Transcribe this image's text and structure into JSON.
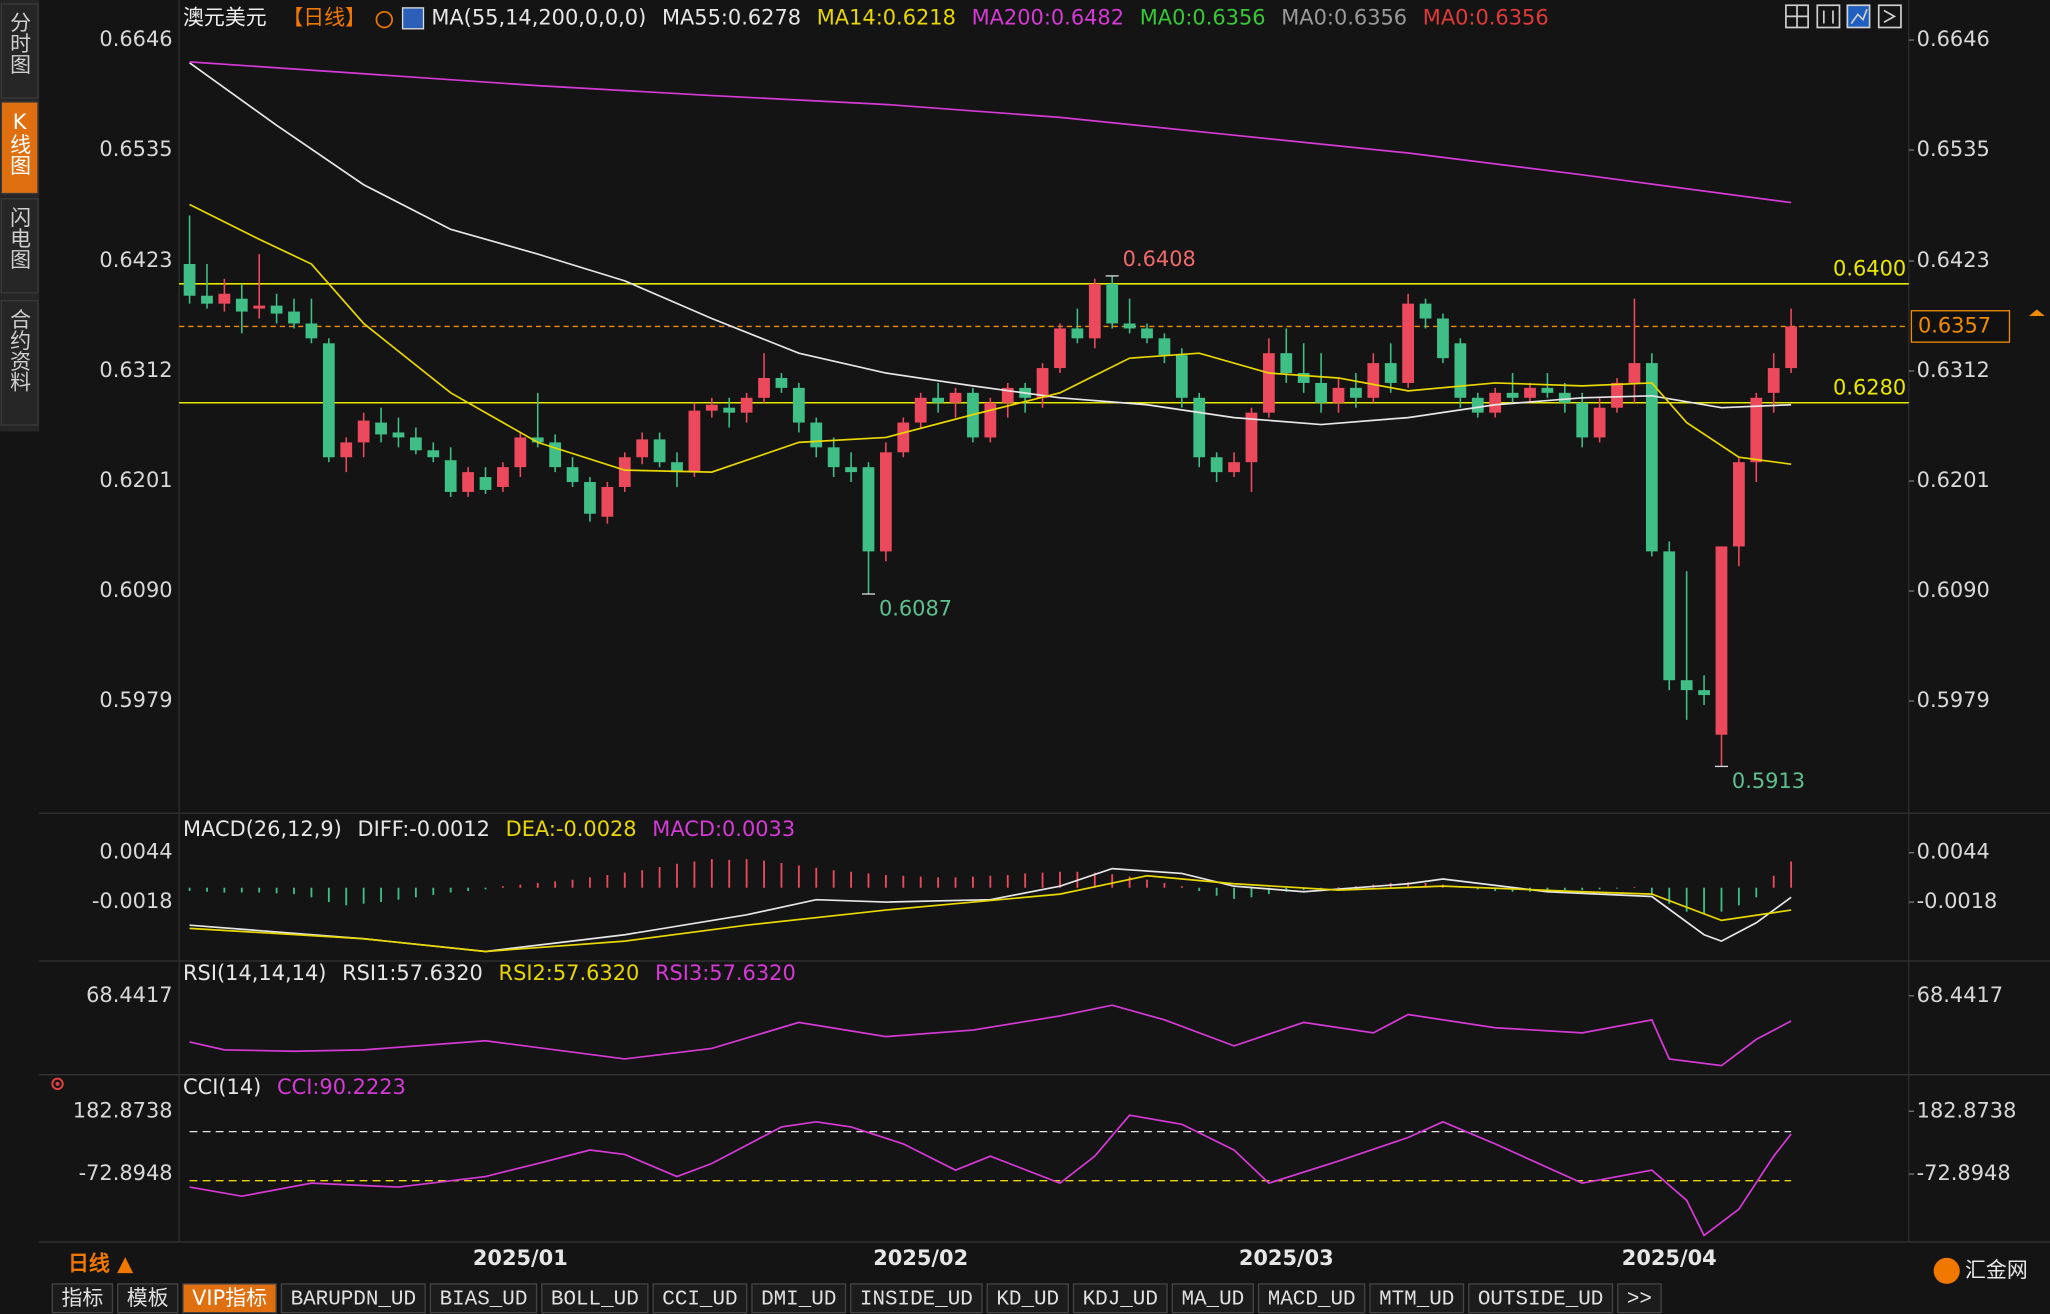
{
  "sidebar": {
    "tabs": [
      "分时图",
      "K线图",
      "闪电图",
      "合约资料"
    ],
    "active": 1
  },
  "chart_data": [
    {
      "type": "candlestick",
      "title": "澳元美元",
      "period": "【日线】",
      "indicator": "MA(55,14,200,0,0,0)",
      "open": [
        0.642,
        0.6388,
        0.638,
        0.6385,
        0.6375,
        0.6378,
        0.6372,
        0.636,
        0.634,
        0.6225,
        0.624,
        0.626,
        0.625,
        0.6245,
        0.6232,
        0.6222,
        0.619,
        0.6205,
        0.6195,
        0.6215,
        0.6245,
        0.624,
        0.6215,
        0.62,
        0.6165,
        0.6195,
        0.6225,
        0.6243,
        0.622,
        0.621,
        0.6272,
        0.6275,
        0.627,
        0.6285,
        0.6305,
        0.6295,
        0.626,
        0.6235,
        0.6215,
        0.6215,
        0.613,
        0.623,
        0.626,
        0.6285,
        0.628,
        0.629,
        0.6245,
        0.628,
        0.6295,
        0.6285,
        0.6315,
        0.6355,
        0.6345,
        0.64,
        0.636,
        0.6355,
        0.6345,
        0.6328,
        0.6285,
        0.6225,
        0.621,
        0.622,
        0.627,
        0.633,
        0.631,
        0.63,
        0.628,
        0.6295,
        0.6285,
        0.632,
        0.63,
        0.638,
        0.6365,
        0.634,
        0.6285,
        0.627,
        0.629,
        0.6285,
        0.6295,
        0.629,
        0.628,
        0.6245,
        0.6275,
        0.63,
        0.632,
        0.613,
        0.6,
        0.599,
        0.5945,
        0.6135,
        0.622,
        0.629,
        0.6315
      ],
      "high": [
        0.6469,
        0.642,
        0.6405,
        0.64,
        0.643,
        0.639,
        0.6385,
        0.6385,
        0.6345,
        0.6245,
        0.627,
        0.6275,
        0.6265,
        0.6255,
        0.624,
        0.6235,
        0.6215,
        0.6215,
        0.622,
        0.625,
        0.629,
        0.6248,
        0.6225,
        0.6205,
        0.62,
        0.623,
        0.625,
        0.625,
        0.623,
        0.628,
        0.6285,
        0.6285,
        0.629,
        0.633,
        0.631,
        0.63,
        0.6265,
        0.6245,
        0.623,
        0.622,
        0.624,
        0.6265,
        0.629,
        0.63,
        0.6295,
        0.6295,
        0.6285,
        0.63,
        0.63,
        0.632,
        0.636,
        0.6375,
        0.6405,
        0.6408,
        0.6385,
        0.636,
        0.635,
        0.6335,
        0.629,
        0.623,
        0.623,
        0.6275,
        0.6345,
        0.6355,
        0.634,
        0.633,
        0.6305,
        0.631,
        0.633,
        0.634,
        0.639,
        0.6385,
        0.637,
        0.6345,
        0.629,
        0.6295,
        0.631,
        0.63,
        0.631,
        0.63,
        0.629,
        0.6285,
        0.6305,
        0.6385,
        0.633,
        0.614,
        0.611,
        0.6005,
        0.6135,
        0.6225,
        0.629,
        0.633,
        0.6375
      ],
      "low": [
        0.638,
        0.6375,
        0.6372,
        0.635,
        0.6365,
        0.636,
        0.6355,
        0.634,
        0.622,
        0.621,
        0.6225,
        0.624,
        0.6235,
        0.6228,
        0.622,
        0.6185,
        0.6185,
        0.6188,
        0.619,
        0.6205,
        0.6235,
        0.621,
        0.6195,
        0.616,
        0.6158,
        0.619,
        0.6218,
        0.6215,
        0.6195,
        0.6205,
        0.6265,
        0.6255,
        0.626,
        0.628,
        0.629,
        0.625,
        0.6225,
        0.6205,
        0.62,
        0.6087,
        0.612,
        0.6225,
        0.6255,
        0.627,
        0.6265,
        0.624,
        0.624,
        0.6265,
        0.627,
        0.6275,
        0.631,
        0.634,
        0.6335,
        0.6355,
        0.635,
        0.634,
        0.632,
        0.6275,
        0.6215,
        0.62,
        0.6205,
        0.619,
        0.6265,
        0.63,
        0.629,
        0.627,
        0.627,
        0.6275,
        0.628,
        0.629,
        0.6295,
        0.6355,
        0.632,
        0.6275,
        0.6265,
        0.6265,
        0.628,
        0.628,
        0.6285,
        0.627,
        0.6235,
        0.624,
        0.627,
        0.628,
        0.6125,
        0.599,
        0.596,
        0.5975,
        0.5913,
        0.6115,
        0.62,
        0.627,
        0.631
      ],
      "close": [
        0.6388,
        0.638,
        0.639,
        0.6372,
        0.6378,
        0.637,
        0.636,
        0.6345,
        0.6225,
        0.624,
        0.6262,
        0.6248,
        0.6245,
        0.6232,
        0.6225,
        0.619,
        0.621,
        0.6192,
        0.6215,
        0.6245,
        0.624,
        0.6215,
        0.62,
        0.6168,
        0.6195,
        0.6225,
        0.6243,
        0.622,
        0.621,
        0.6272,
        0.6278,
        0.627,
        0.6285,
        0.6305,
        0.6295,
        0.626,
        0.6235,
        0.6215,
        0.621,
        0.613,
        0.623,
        0.626,
        0.6285,
        0.628,
        0.629,
        0.6245,
        0.628,
        0.6295,
        0.6285,
        0.6315,
        0.6355,
        0.6345,
        0.64,
        0.636,
        0.6355,
        0.6345,
        0.6328,
        0.6285,
        0.6225,
        0.621,
        0.622,
        0.627,
        0.633,
        0.631,
        0.63,
        0.628,
        0.6295,
        0.6285,
        0.632,
        0.63,
        0.638,
        0.6365,
        0.6325,
        0.6285,
        0.627,
        0.629,
        0.6285,
        0.6295,
        0.629,
        0.628,
        0.6245,
        0.6275,
        0.63,
        0.632,
        0.613,
        0.6,
        0.599,
        0.5985,
        0.6135,
        0.622,
        0.6285,
        0.6315,
        0.6357
      ],
      "up_color": "#ec4a5c",
      "down_color": "#3fbf86",
      "ylim": [
        0.5875,
        0.666
      ],
      "yticks": [
        0.6646,
        0.6535,
        0.6423,
        0.6312,
        0.6201,
        {
          "value": 0.609,
          "label": "0.6090"
        },
        0.5979
      ],
      "x_labels": [
        {
          "index": 19,
          "label": "2025/01"
        },
        {
          "index": 42,
          "label": "2025/02"
        },
        {
          "index": 63,
          "label": "2025/03"
        },
        {
          "index": 85,
          "label": "2025/04"
        }
      ],
      "series": [
        {
          "name": "MA55:0.6278",
          "color": "#e6e6e6",
          "x": [
            0,
            5,
            10,
            15,
            20,
            25,
            30,
            35,
            40,
            45,
            50,
            55,
            60,
            65,
            70,
            75,
            80,
            84,
            88,
            92
          ],
          "values": [
            0.6623,
            0.656,
            0.65,
            0.6455,
            0.643,
            0.6403,
            0.6365,
            0.633,
            0.631,
            0.6297,
            0.6285,
            0.6278,
            0.6265,
            0.6258,
            0.6265,
            0.6278,
            0.6285,
            0.6287,
            0.6275,
            0.6278
          ]
        },
        {
          "name": "MA14:0.6218",
          "color": "#e8d700",
          "x": [
            0,
            4,
            7,
            10,
            15,
            20,
            25,
            30,
            35,
            40,
            45,
            50,
            54,
            58,
            62,
            66,
            70,
            75,
            80,
            84,
            86,
            89,
            92
          ],
          "values": [
            0.648,
            0.6445,
            0.642,
            0.636,
            0.629,
            0.624,
            0.6212,
            0.621,
            0.624,
            0.6245,
            0.6268,
            0.629,
            0.6325,
            0.633,
            0.631,
            0.6305,
            0.6292,
            0.63,
            0.6297,
            0.63,
            0.626,
            0.6225,
            0.6218
          ]
        },
        {
          "name": "MA200:0.6482",
          "color": "#d63ad6",
          "x": [
            0,
            10,
            20,
            30,
            40,
            50,
            60,
            70,
            80,
            92
          ],
          "values": [
            0.6624,
            0.6612,
            0.66,
            0.659,
            0.6581,
            0.6568,
            0.655,
            0.6532,
            0.651,
            0.6482
          ]
        }
      ],
      "extra_legend": [
        {
          "name": "MA0:0.6356",
          "color": "#37c837"
        },
        {
          "name": "MA0:0.6356",
          "color": "#9a9a9a"
        },
        {
          "name": "MA0:0.6356",
          "color": "#e23a3a"
        }
      ],
      "hlines": [
        {
          "value": 0.64,
          "label": "0.6400",
          "color": "#e8e800"
        },
        {
          "value": 0.628,
          "label": "0.6280",
          "color": "#e8e800"
        }
      ],
      "last_price": {
        "value": 0.6357,
        "color": "#f08c00"
      },
      "annotations": [
        {
          "index": 53,
          "value": 0.6408,
          "color": "#f06a6a"
        },
        {
          "index": 39,
          "value": 0.6087,
          "color": "#5fc08f"
        },
        {
          "index": 88,
          "value": 0.5913,
          "color": "#5fc08f"
        }
      ]
    },
    {
      "type": "macd",
      "title": "MACD(26,12,9)",
      "ylim": [
        -0.0087,
        0.0064
      ],
      "yticks": [
        0.0044,
        -0.0018
      ],
      "series": [
        {
          "name": "DIFF:-0.0012",
          "color": "#e6e6e6",
          "x": [
            0,
            10,
            17,
            25,
            32,
            36,
            40,
            46,
            50,
            53,
            57,
            60,
            64,
            70,
            72,
            78,
            84,
            87,
            88,
            90,
            92
          ],
          "values": [
            -0.0047,
            -0.0064,
            -0.008,
            -0.0059,
            -0.0034,
            -0.0015,
            -0.0018,
            -0.0015,
            0.0002,
            0.0024,
            0.0018,
            0.0002,
            -0.0005,
            0.0005,
            0.0011,
            -0.0005,
            -0.0011,
            -0.0059,
            -0.0067,
            -0.0044,
            -0.0012
          ]
        },
        {
          "name": "DEA:-0.0028",
          "color": "#e8d700",
          "x": [
            0,
            10,
            17,
            25,
            32,
            40,
            50,
            55,
            60,
            66,
            72,
            80,
            84,
            88,
            92
          ],
          "values": [
            -0.0051,
            -0.0064,
            -0.008,
            -0.0067,
            -0.0047,
            -0.0028,
            -0.0008,
            0.0015,
            0.0005,
            -0.0003,
            0.0002,
            -0.0005,
            -0.0008,
            -0.0041,
            -0.0028
          ]
        }
      ],
      "histogram": {
        "name": "MACD:0.0033",
        "color": "#d63ad6",
        "up_color": "#ec4a5c",
        "down_color": "#3fbf86",
        "values": [
          -0.0004,
          -0.0005,
          -0.0006,
          -0.0006,
          -0.0006,
          -0.0007,
          -0.0008,
          -0.0012,
          -0.0018,
          -0.0022,
          -0.002,
          -0.0018,
          -0.0015,
          -0.0012,
          -0.0009,
          -0.0006,
          -0.0004,
          -0.0002,
          0.0002,
          0.0004,
          0.0006,
          0.0008,
          0.001,
          0.0013,
          0.0016,
          0.0019,
          0.0022,
          0.0026,
          0.003,
          0.0033,
          0.0036,
          0.0035,
          0.0036,
          0.0034,
          0.0031,
          0.0028,
          0.0025,
          0.0022,
          0.002,
          0.0018,
          0.0016,
          0.0015,
          0.0014,
          0.0013,
          0.0013,
          0.0014,
          0.0015,
          0.0016,
          0.0018,
          0.0019,
          0.002,
          0.002,
          0.0019,
          0.0017,
          0.0014,
          0.001,
          0.0006,
          0.0002,
          -0.0004,
          -0.001,
          -0.0014,
          -0.0012,
          -0.0008,
          -0.0005,
          -0.0003,
          -0.0002,
          0.0001,
          0.0002,
          0.0004,
          0.0006,
          0.0007,
          0.0006,
          0.0004,
          0.0002,
          -0.0002,
          -0.0004,
          -0.0005,
          -0.0005,
          -0.0004,
          -0.0003,
          -0.0003,
          -0.0002,
          -0.0001,
          0.0001,
          -0.0008,
          -0.002,
          -0.003,
          -0.0032,
          -0.003,
          -0.0022,
          -0.0012,
          0.0015,
          0.0033
        ]
      }
    },
    {
      "type": "line",
      "title": "RSI(14,14,14)",
      "ylim": [
        30,
        75
      ],
      "yticks": [
        68.4417
      ],
      "legend": [
        {
          "name": "RSI1:57.6320",
          "color": "#e6e6e6"
        },
        {
          "name": "RSI2:57.6320",
          "color": "#e8d700"
        },
        {
          "name": "RSI3:57.6320",
          "color": "#d63ad6"
        }
      ],
      "series": [
        {
          "color": "#d63ad6",
          "x": [
            0,
            2,
            6,
            10,
            17,
            25,
            30,
            35,
            40,
            45,
            50,
            53,
            56,
            60,
            64,
            68,
            70,
            75,
            80,
            84,
            85,
            88,
            90,
            92
          ],
          "values": [
            48.6,
            45.2,
            44.6,
            45.2,
            49.1,
            41.3,
            45.8,
            57.0,
            50.9,
            53.7,
            59.8,
            64.4,
            58.1,
            46.9,
            57.0,
            52.5,
            60.4,
            54.7,
            52.5,
            58.1,
            41.3,
            38.4,
            49.7,
            57.6
          ]
        }
      ]
    },
    {
      "type": "line",
      "title": "CCI(14)",
      "ylim": [
        -350,
        236
      ],
      "yticks": [
        182.8738,
        -72.8948
      ],
      "legend": [
        {
          "name": "CCI:90.2223",
          "color": "#d63ad6"
        }
      ],
      "hlines": [
        {
          "value": 100,
          "color": "#e6e6e6"
        },
        {
          "value": -100,
          "color": "#e8d700"
        }
      ],
      "series": [
        {
          "color": "#d63ad6",
          "x": [
            0,
            3,
            7,
            12,
            17,
            20,
            23,
            25,
            28,
            30,
            34,
            36,
            38,
            41,
            44,
            46,
            50,
            52,
            54,
            57,
            60,
            62,
            66,
            70,
            72,
            75,
            80,
            84,
            86,
            87,
            89,
            91,
            92
          ],
          "values": [
            -126,
            -163,
            -110,
            -126,
            -83,
            -30,
            25,
            7,
            -83,
            -30,
            119,
            140,
            119,
            50,
            -57,
            0,
            -110,
            0,
            167,
            130,
            25,
            -110,
            -20,
            76,
            140,
            50,
            -110,
            -57,
            -180,
            -323,
            -216,
            0,
            90.2223
          ]
        }
      ]
    }
  ],
  "footer": {
    "period": "日线 ▲",
    "tabs": [
      "指标",
      "模板",
      "VIP指标",
      "BARUPDN_UD",
      "BIAS_UD",
      "BOLL_UD",
      "CCI_UD",
      "DMI_UD",
      "INSIDE_UD",
      "KD_UD",
      "KDJ_UD",
      "MA_UD",
      "MACD_UD",
      "MTM_UD",
      "OUTSIDE_UD",
      ">>"
    ],
    "active": 2,
    "logo": "汇金网"
  }
}
